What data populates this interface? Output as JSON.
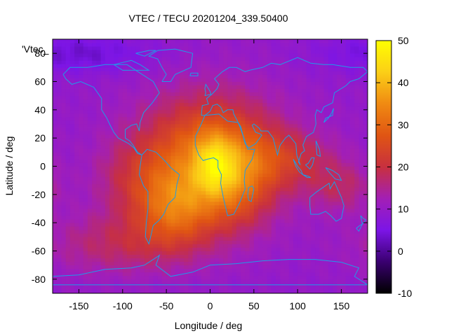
{
  "chart_data": {
    "type": "heatmap",
    "title": "VTEC / TECU 20201204_339.50400",
    "xlabel": "Longitude / deg",
    "ylabel": "Latitude / deg",
    "legend_label": "'Vtec_",
    "xlim": [
      -180,
      180
    ],
    "ylim": [
      -90,
      90
    ],
    "xticks": [
      -150,
      -100,
      -50,
      0,
      50,
      100,
      150
    ],
    "yticks": [
      -80,
      -60,
      -40,
      -20,
      0,
      20,
      40,
      60,
      80
    ],
    "colorbar": {
      "range": [
        -10,
        50
      ],
      "ticks": [
        -10,
        0,
        10,
        20,
        30,
        40,
        50
      ],
      "palette_stops": [
        "#000000",
        "#3a0070",
        "#7c15e6",
        "#a31fb5",
        "#c8303f",
        "#e05513",
        "#f08a12",
        "#fbcf17",
        "#ffff00"
      ]
    },
    "grid": false,
    "map_overlay": "coastlines",
    "overlay_color": "#1e9ce8",
    "field": {
      "description_units": "TECU",
      "background": 9.5,
      "components": [
        {
          "lon": 0,
          "lat": 5,
          "value": 24,
          "sigma_lon": 55,
          "sigma_lat": 30
        },
        {
          "lon": 5,
          "lat": 2,
          "value": 12,
          "sigma_lon": 15,
          "sigma_lat": 14
        },
        {
          "lon": -40,
          "lat": -30,
          "value": 14,
          "sigma_lon": 30,
          "sigma_lat": 18
        },
        {
          "lon": 30,
          "lat": -15,
          "value": 8,
          "sigma_lon": 25,
          "sigma_lat": 20
        },
        {
          "lon": 90,
          "lat": 5,
          "value": 8,
          "sigma_lon": 40,
          "sigma_lat": 14
        },
        {
          "lon": 150,
          "lat": -15,
          "value": 7,
          "sigma_lon": 25,
          "sigma_lat": 12
        },
        {
          "lon": -100,
          "lat": -55,
          "value": 8,
          "sigma_lon": 60,
          "sigma_lat": 15
        },
        {
          "lon": -90,
          "lat": -10,
          "value": 6,
          "sigma_lon": 30,
          "sigma_lat": 20
        },
        {
          "lon": -150,
          "lat": 80,
          "value": -6,
          "sigma_lon": 60,
          "sigma_lat": 10
        }
      ]
    }
  }
}
